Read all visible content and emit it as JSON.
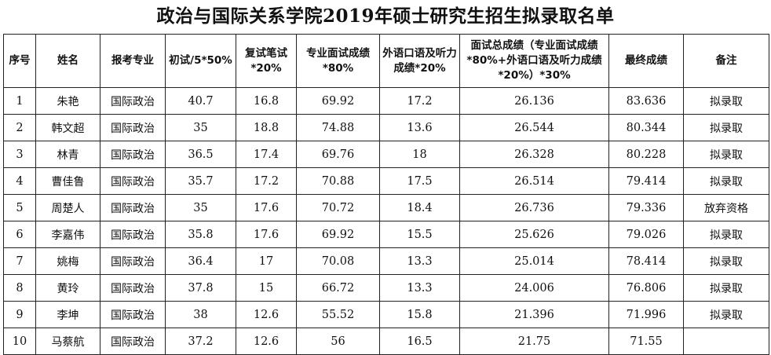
{
  "page": {
    "title": "政治与国际关系学院2019年硕士研究生招生拟录取名单"
  },
  "table": {
    "headers": [
      "序号",
      "姓名",
      "报考专业",
      "初试/5*50%",
      "复试笔试*20%",
      "专业面试成绩*80%",
      "外语口语及听力成绩*20%",
      "面试总成绩（专业面试成绩*80%+外语口语及听力成绩*20%）*30%",
      "最终成绩",
      "备注"
    ],
    "rows": [
      [
        "1",
        "朱艳",
        "国际政治",
        "40.7",
        "16.8",
        "69.92",
        "17.2",
        "26.136",
        "83.636",
        "拟录取"
      ],
      [
        "2",
        "韩文超",
        "国际政治",
        "35",
        "18.8",
        "74.88",
        "13.6",
        "26.544",
        "80.344",
        "拟录取"
      ],
      [
        "3",
        "林青",
        "国际政治",
        "36.5",
        "17.4",
        "69.76",
        "18",
        "26.328",
        "80.228",
        "拟录取"
      ],
      [
        "4",
        "曹佳鲁",
        "国际政治",
        "35.7",
        "17.2",
        "70.88",
        "17.5",
        "26.514",
        "79.414",
        "拟录取"
      ],
      [
        "5",
        "周楚人",
        "国际政治",
        "35",
        "17.6",
        "70.72",
        "18.4",
        "26.736",
        "79.336",
        "放弃资格"
      ],
      [
        "6",
        "李嘉伟",
        "国际政治",
        "35.8",
        "17.6",
        "69.92",
        "15.5",
        "25.626",
        "79.026",
        "拟录取"
      ],
      [
        "7",
        "姚梅",
        "国际政治",
        "36.4",
        "17",
        "70.08",
        "13.3",
        "25.014",
        "78.414",
        "拟录取"
      ],
      [
        "8",
        "黄玲",
        "国际政治",
        "37.8",
        "15",
        "66.72",
        "13.3",
        "24.006",
        "76.806",
        "拟录取"
      ],
      [
        "9",
        "李坤",
        "国际政治",
        "38",
        "12.6",
        "55.52",
        "15.8",
        "21.396",
        "71.996",
        "拟录取"
      ],
      [
        "10",
        "马蔡航",
        "国际政治",
        "37.2",
        "12.6",
        "56",
        "16.5",
        "21.75",
        "71.55",
        ""
      ]
    ]
  }
}
